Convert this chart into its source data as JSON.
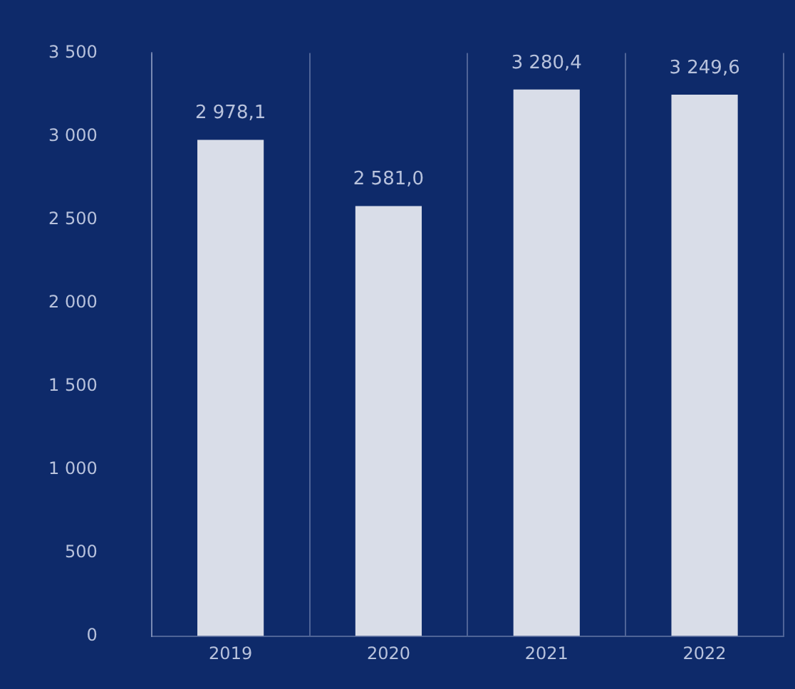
{
  "chart_data": {
    "type": "bar",
    "categories": [
      "2019",
      "2020",
      "2021",
      "2022"
    ],
    "values": [
      2978.1,
      2581.0,
      3280.4,
      3249.6
    ],
    "value_labels": [
      "2 978,1",
      "2 581,0",
      "3 280,4",
      "3 249,6"
    ],
    "color": "#d9dde8",
    "ylim": [
      0,
      3500
    ],
    "yticks": [
      {
        "value": 0,
        "label": "0"
      },
      {
        "value": 500,
        "label": "500"
      },
      {
        "value": 1000,
        "label": "1 000"
      },
      {
        "value": 1500,
        "label": "1 500"
      },
      {
        "value": 2000,
        "label": "2 000"
      },
      {
        "value": 2500,
        "label": "2 500"
      },
      {
        "value": 3000,
        "label": "3 000"
      },
      {
        "value": 3500,
        "label": "3 500"
      }
    ],
    "grid": "x"
  }
}
